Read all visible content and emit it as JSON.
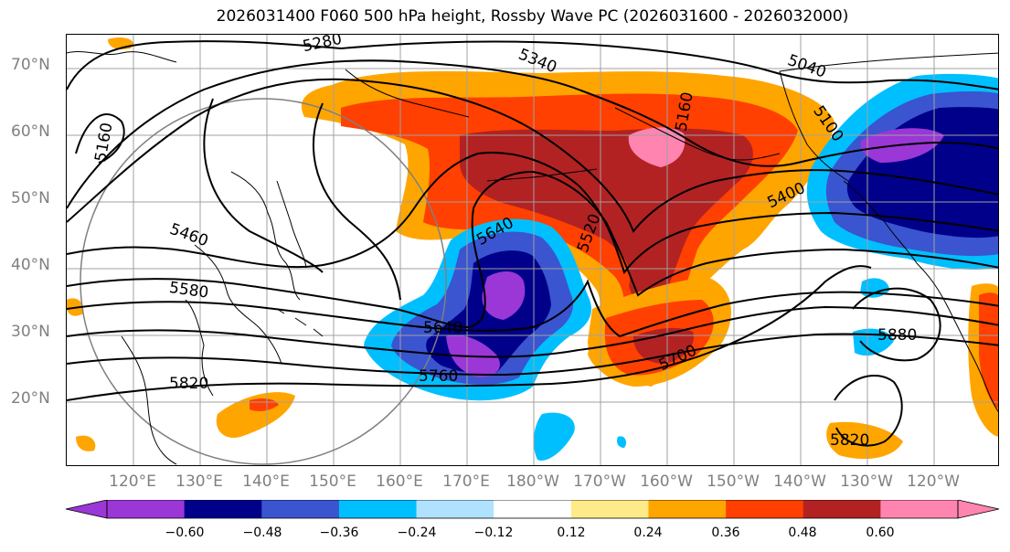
{
  "title": "2026031400 F060 500 hPa height, Rossby Wave PC (2026031600 - 2026032000)",
  "lat_labels": [
    "70°N",
    "60°N",
    "50°N",
    "40°N",
    "30°N",
    "20°N"
  ],
  "lon_labels": [
    "120°E",
    "130°E",
    "140°E",
    "150°E",
    "160°E",
    "170°E",
    "180°W",
    "170°W",
    "160°W",
    "150°W",
    "140°W",
    "130°W",
    "120°W"
  ],
  "contour_labels": [
    "5280",
    "5340",
    "5040",
    "5160",
    "5100",
    "5160",
    "5400",
    "5460",
    "5580",
    "5640",
    "5520",
    "5640",
    "5760",
    "5700",
    "5820",
    "5880",
    "5820"
  ],
  "colorbar": {
    "ticks": [
      "−0.60",
      "−0.48",
      "−0.36",
      "−0.24",
      "−0.12",
      "0.12",
      "0.24",
      "0.36",
      "0.48",
      "0.60"
    ],
    "colors": [
      "#9a37d6",
      "#00008b",
      "#3a55cf",
      "#00bfff",
      "#b0e2ff",
      "#ffffff",
      "#ffea8a",
      "#ffa500",
      "#ff4000",
      "#b22222",
      "#ff85b0"
    ]
  }
}
